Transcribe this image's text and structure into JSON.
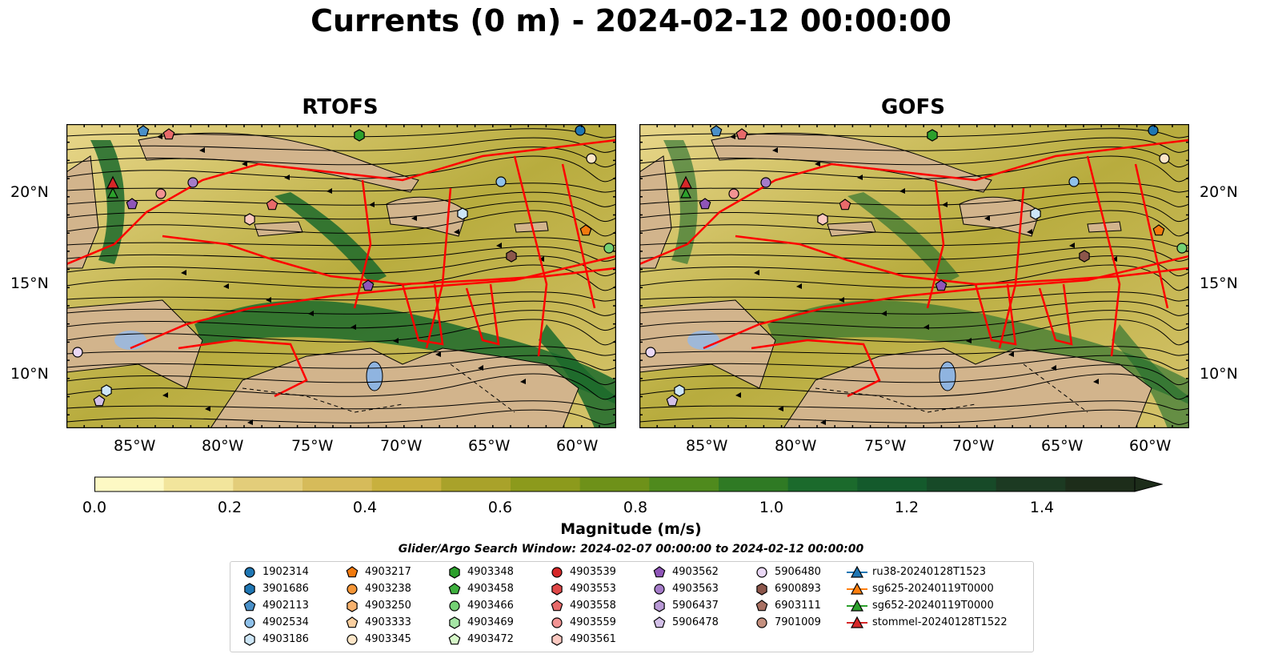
{
  "title": "Currents (0 m) - 2024-02-12 00:00:00",
  "panels": [
    {
      "title": "RTOFS"
    },
    {
      "title": "GOFS"
    }
  ],
  "axes": {
    "lon_ticks": [
      "85°W",
      "80°W",
      "75°W",
      "70°W",
      "65°W",
      "60°W"
    ],
    "lat_ticks": [
      "20°N",
      "15°N",
      "10°N"
    ]
  },
  "colorbar": {
    "label": "Magnitude (m/s)",
    "ticks": [
      "0.0",
      "0.2",
      "0.4",
      "0.6",
      "0.8",
      "1.0",
      "1.2",
      "1.4"
    ],
    "range": [
      0.0,
      1.5
    ],
    "extend": "max",
    "colors": [
      "#fdf9c4",
      "#f2e59c",
      "#e3cd7a",
      "#d6bb5a",
      "#c8b03e",
      "#a9a22a",
      "#8c9a1c",
      "#6e9119",
      "#4f8a1d",
      "#2f7a24",
      "#1b6a2c",
      "#145a2c",
      "#174a28",
      "#1c3a22",
      "#1d2d1a"
    ]
  },
  "search_window": "Glider/Argo Search Window: 2024-02-07 00:00:00 to 2024-02-12 00:00:00",
  "legend": [
    {
      "label": "1902314",
      "marker": "circle",
      "color": "#1f77b4"
    },
    {
      "label": "3901686",
      "marker": "hexagon",
      "color": "#1f77b4"
    },
    {
      "label": "4902113",
      "marker": "pentagon",
      "color": "#4a90c8"
    },
    {
      "label": "4902534",
      "marker": "circle",
      "color": "#8fc1ea"
    },
    {
      "label": "4903186",
      "marker": "hexagon",
      "color": "#cde6f7"
    },
    {
      "label": "4903217",
      "marker": "pentagon",
      "color": "#f27a0e"
    },
    {
      "label": "4903238",
      "marker": "circle",
      "color": "#f59637"
    },
    {
      "label": "4903250",
      "marker": "hexagon",
      "color": "#f7b16d"
    },
    {
      "label": "4903333",
      "marker": "pentagon",
      "color": "#fbcf9f"
    },
    {
      "label": "4903345",
      "marker": "circle",
      "color": "#fde6c8"
    },
    {
      "label": "4903348",
      "marker": "hexagon",
      "color": "#2ca02c"
    },
    {
      "label": "4903458",
      "marker": "pentagon",
      "color": "#3fb03f"
    },
    {
      "label": "4903466",
      "marker": "circle",
      "color": "#74d174"
    },
    {
      "label": "4903469",
      "marker": "hexagon",
      "color": "#a6e6a6"
    },
    {
      "label": "4903472",
      "marker": "pentagon",
      "color": "#d6f7c8"
    },
    {
      "label": "4903539",
      "marker": "circle",
      "color": "#d62728"
    },
    {
      "label": "4903553",
      "marker": "hexagon",
      "color": "#e04848"
    },
    {
      "label": "4903558",
      "marker": "pentagon",
      "color": "#e86a6a"
    },
    {
      "label": "4903559",
      "marker": "circle",
      "color": "#f29393"
    },
    {
      "label": "4903561",
      "marker": "hexagon",
      "color": "#fbc8c0"
    },
    {
      "label": "4903562",
      "marker": "pentagon",
      "color": "#8f55b8"
    },
    {
      "label": "4903563",
      "marker": "circle",
      "color": "#a57cc9"
    },
    {
      "label": "5906437",
      "marker": "hexagon",
      "color": "#b99ad6"
    },
    {
      "label": "5906478",
      "marker": "pentagon",
      "color": "#d3c0e8"
    },
    {
      "label": "5906480",
      "marker": "circle",
      "color": "#ead8f6"
    },
    {
      "label": "6900893",
      "marker": "hexagon",
      "color": "#8c564b"
    },
    {
      "label": "6903111",
      "marker": "pentagon",
      "color": "#a87062"
    },
    {
      "label": "7901009",
      "marker": "circle",
      "color": "#c4907f"
    },
    {
      "label": "ru38-20240128T1523",
      "marker": "triangle-line",
      "color": "#1f77b4"
    },
    {
      "label": "sg625-20240119T0000",
      "marker": "triangle-line",
      "color": "#ff7f0e"
    },
    {
      "label": "sg652-20240119T0000",
      "marker": "triangle-line",
      "color": "#2ca02c"
    },
    {
      "label": "stommel-20240128T1522",
      "marker": "triangle-line",
      "color": "#d62728"
    }
  ],
  "map_colors": {
    "land": "#d2b48c",
    "lake": "#8fb4e0",
    "track": "#ff0000",
    "water_low": "#f2e59c",
    "water_high": "#1b6a2c"
  }
}
